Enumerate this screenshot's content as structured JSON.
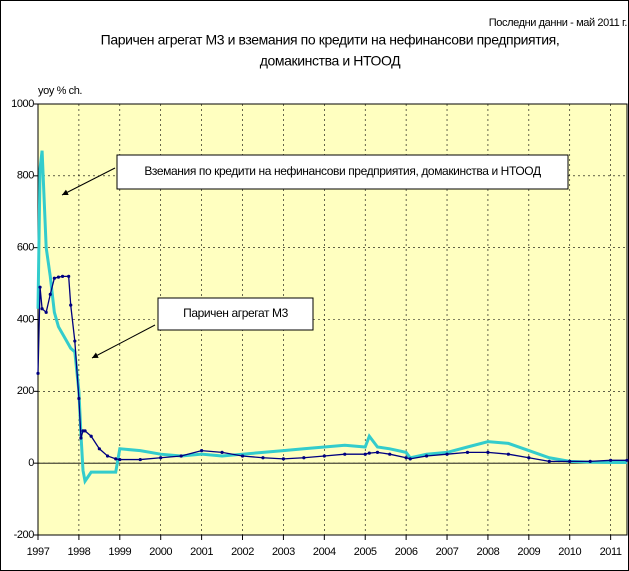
{
  "chart_data": {
    "type": "line",
    "title": [
      "Паричен агрегат М3 и вземания по кредити на нефинансови предприятия,",
      "домакинства и НТООД"
    ],
    "note": "Последни данни - май 2011 г.",
    "y_label": "yoy % ch.",
    "x": [
      1997.0,
      1997.05,
      1997.1,
      1997.2,
      1997.3,
      1997.4,
      1997.5,
      1997.6,
      1997.75,
      1997.8,
      1997.9,
      1998.0,
      1998.05,
      1998.1,
      1998.15,
      1998.3,
      1998.5,
      1998.7,
      1998.9,
      1999.0,
      1999.5,
      2000,
      2000.5,
      2001,
      2001.5,
      2002,
      2002.5,
      2003,
      2003.5,
      2004,
      2004.5,
      2005,
      2005.1,
      2005.3,
      2005.6,
      2006,
      2006.1,
      2006.5,
      2007,
      2007.5,
      2008,
      2008.5,
      2009,
      2009.5,
      2010,
      2010.5,
      2011,
      2011.4
    ],
    "series": [
      {
        "name": "Вземания по кредити на нефинансови предприятия, домакинства и НТООД",
        "color": "#33cccc",
        "markers": false,
        "values": [
          430,
          820,
          870,
          600,
          520,
          420,
          380,
          360,
          330,
          320,
          310,
          200,
          80,
          -20,
          -50,
          -25,
          -25,
          -25,
          -25,
          40,
          35,
          25,
          20,
          25,
          20,
          25,
          30,
          35,
          40,
          45,
          50,
          45,
          75,
          45,
          40,
          30,
          15,
          25,
          30,
          45,
          60,
          55,
          35,
          15,
          5,
          3,
          2,
          2
        ]
      },
      {
        "name": "Паричен агрегат М3",
        "color": "#000080",
        "markers": true,
        "values": [
          250,
          490,
          430,
          420,
          470,
          515,
          518,
          520,
          520,
          440,
          340,
          180,
          70,
          90,
          90,
          75,
          40,
          20,
          12,
          10,
          10,
          15,
          20,
          35,
          30,
          20,
          15,
          12,
          15,
          20,
          25,
          25,
          28,
          30,
          25,
          15,
          12,
          20,
          25,
          30,
          30,
          25,
          15,
          5,
          5,
          5,
          8,
          8
        ]
      }
    ],
    "xlim": [
      1997,
      2011.4
    ],
    "xticks": [
      1997,
      1998,
      1999,
      2000,
      2001,
      2002,
      2003,
      2004,
      2005,
      2006,
      2007,
      2008,
      2009,
      2010,
      2011
    ],
    "ylim": [
      -200,
      1000
    ],
    "yticks": [
      -200,
      0,
      200,
      400,
      600,
      800,
      1000
    ],
    "grid": true,
    "plot_background": "#ffffc0"
  }
}
